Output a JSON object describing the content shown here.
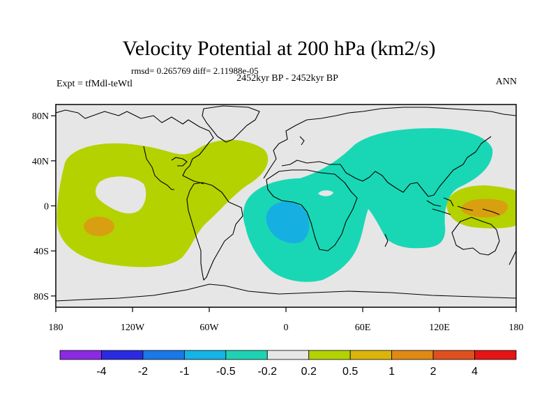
{
  "header": {
    "title": "Velocity Potential at 200 hPa (km2/s)",
    "stats": "rmsd= 0.265769 diff= 2.11988e-05",
    "subtitle": "2452kyr BP - 2452kyr BP",
    "left_label": "Expt = tfMdl-teWtl",
    "right_label": "ANN"
  },
  "map": {
    "lon_range": [
      -180,
      180
    ],
    "lat_range": [
      -90,
      90
    ],
    "x_ticks": [
      {
        "value": -180,
        "label": "180"
      },
      {
        "value": -120,
        "label": "120W"
      },
      {
        "value": -60,
        "label": "60W"
      },
      {
        "value": 0,
        "label": "0"
      },
      {
        "value": 60,
        "label": "60E"
      },
      {
        "value": 120,
        "label": "120E"
      },
      {
        "value": 180,
        "label": "180"
      }
    ],
    "y_ticks": [
      {
        "value": 80,
        "label": "80N"
      },
      {
        "value": 40,
        "label": "40N"
      },
      {
        "value": 0,
        "label": "0"
      },
      {
        "value": -40,
        "label": "40S"
      },
      {
        "value": -80,
        "label": "80S"
      }
    ],
    "background_color": "#e6e6e6",
    "coastline_color": "#000000",
    "regions": [
      {
        "name": "pacific-atlantic-positive",
        "level": "0.2 to 0.5",
        "color": "#b4d200"
      },
      {
        "name": "western-pacific-positive",
        "level": "0.2 to 0.5",
        "color": "#b4d200"
      },
      {
        "name": "central-pacific-maximum",
        "level": "0.5 to 1",
        "color": "#d8a010"
      },
      {
        "name": "western-pacific-maximum",
        "level": "0.5 to 1",
        "color": "#d8a010"
      },
      {
        "name": "africa-asia-negative",
        "level": "-0.5 to -0.2",
        "color": "#19d7b4"
      },
      {
        "name": "atlantic-minimum",
        "level": "-1 to -0.5",
        "color": "#16afe2"
      }
    ]
  },
  "colorbar": {
    "colors": [
      "#8a2be2",
      "#2a2ae0",
      "#1a78e8",
      "#14b4e6",
      "#1ed2b4",
      "#e6e6e6",
      "#b4d200",
      "#dcb40a",
      "#e08a14",
      "#e0501e",
      "#e61414"
    ],
    "labels": [
      "-4",
      "-2",
      "-1",
      "-0.5",
      "-0.2",
      "0.2",
      "0.5",
      "1",
      "2",
      "4"
    ]
  }
}
